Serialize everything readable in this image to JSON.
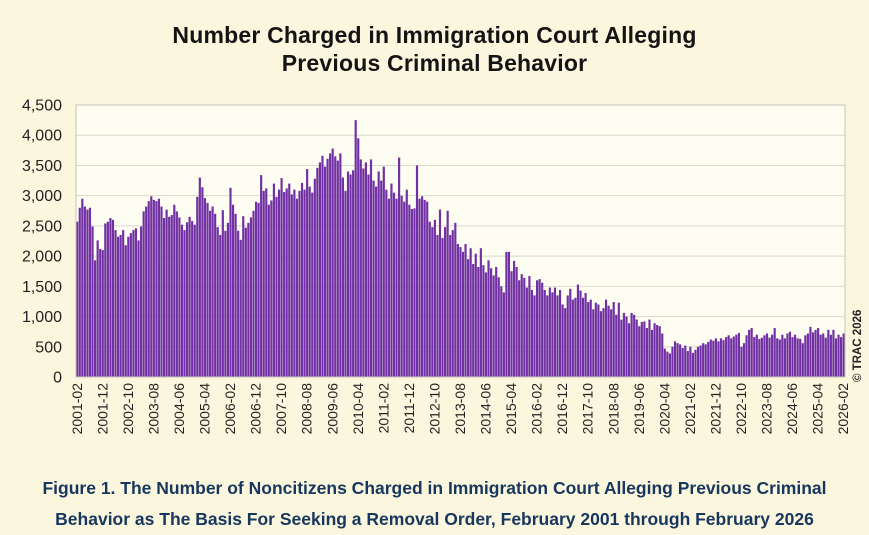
{
  "page": {
    "background": "#FBF6DE",
    "watermark": "© TRAC 2026"
  },
  "caption_lines": [
    "Figure 1. The Number of Noncitizens Charged in Immigration Court Alleging Previous Criminal",
    "Behavior as The Basis For Seeking a Removal Order, February 2001 through February 2026"
  ],
  "chart_data": {
    "type": "bar",
    "title": "Number Charged in Immigration Court Alleging Previous Criminal Behavior",
    "title_lines": [
      "Number Charged in Immigration Court Alleging",
      "Previous Criminal Behavior"
    ],
    "xlabel": "",
    "ylabel": "",
    "x_start": "2001-02",
    "x_end": "2026-02",
    "x_frequency": "monthly",
    "ylim": [
      0,
      4500
    ],
    "ytick_step": 500,
    "ytick_labels": [
      "0",
      "500",
      "1,000",
      "1,500",
      "2,000",
      "2,500",
      "3,000",
      "3,500",
      "4,000",
      "4,500"
    ],
    "grid": true,
    "legend": false,
    "bar_color": "#7130A3",
    "plot_bg": "#FDFDF1",
    "grid_color": "#D9D9CC",
    "frame_color": "#C6C6B8",
    "x_tick_every_months": 10,
    "x_tick_labels": [
      "2001-02",
      "2001-12",
      "2002-10",
      "2003-08",
      "2004-06",
      "2005-04",
      "2006-02",
      "2006-12",
      "2007-10",
      "2008-08",
      "2009-06",
      "2010-04",
      "2011-02",
      "2011-12",
      "2012-10",
      "2013-08",
      "2014-06",
      "2015-04",
      "2016-02",
      "2016-12",
      "2017-10",
      "2018-08",
      "2019-06",
      "2020-04",
      "2021-02",
      "2021-12",
      "2022-10",
      "2023-08",
      "2024-06",
      "2025-04",
      "2026-02"
    ],
    "values": [
      2570,
      2800,
      2950,
      2820,
      2770,
      2800,
      2490,
      1930,
      2260,
      2120,
      2100,
      2540,
      2570,
      2630,
      2600,
      2430,
      2320,
      2350,
      2430,
      2180,
      2320,
      2380,
      2430,
      2460,
      2260,
      2490,
      2740,
      2820,
      2910,
      2990,
      2930,
      2910,
      2950,
      2820,
      2630,
      2770,
      2650,
      2680,
      2850,
      2740,
      2640,
      2520,
      2430,
      2560,
      2650,
      2580,
      2520,
      2980,
      3300,
      3140,
      2960,
      2880,
      2750,
      2820,
      2700,
      2480,
      2350,
      2760,
      2420,
      2550,
      3130,
      2850,
      2700,
      2420,
      2270,
      2660,
      2470,
      2550,
      2640,
      2750,
      2900,
      2880,
      3340,
      3080,
      3120,
      2850,
      2920,
      3200,
      2980,
      3100,
      3290,
      3060,
      3120,
      3200,
      3020,
      3100,
      2950,
      3080,
      3210,
      3100,
      3440,
      3150,
      3050,
      3280,
      3460,
      3550,
      3660,
      3480,
      3610,
      3700,
      3780,
      3650,
      3580,
      3700,
      3300,
      3080,
      3400,
      3350,
      3420,
      4250,
      3950,
      3600,
      3450,
      3550,
      3350,
      3600,
      3250,
      3150,
      3400,
      3250,
      3480,
      3100,
      2950,
      3200,
      3050,
      2950,
      3630,
      3000,
      2900,
      3100,
      2850,
      2780,
      2790,
      3500,
      2950,
      2990,
      2930,
      2900,
      2570,
      2480,
      2600,
      2350,
      2770,
      2300,
      2480,
      2750,
      2350,
      2430,
      2550,
      2200,
      2150,
      2070,
      2200,
      1950,
      2130,
      1870,
      2040,
      1820,
      2130,
      1850,
      1730,
      1930,
      1800,
      1680,
      1820,
      1650,
      1500,
      1400,
      2070,
      2070,
      1750,
      1920,
      1820,
      1600,
      1700,
      1640,
      1480,
      1670,
      1440,
      1350,
      1600,
      1620,
      1560,
      1440,
      1350,
      1480,
      1400,
      1480,
      1350,
      1440,
      1200,
      1140,
      1350,
      1460,
      1280,
      1310,
      1530,
      1430,
      1310,
      1390,
      1240,
      1280,
      1120,
      1230,
      1200,
      1090,
      1140,
      1280,
      1180,
      1120,
      1240,
      1030,
      1230,
      950,
      1060,
      1000,
      890,
      1060,
      1030,
      950,
      840,
      910,
      920,
      810,
      950,
      780,
      890,
      860,
      840,
      720,
      470,
      420,
      390,
      500,
      590,
      560,
      540,
      480,
      520,
      430,
      500,
      400,
      450,
      500,
      520,
      560,
      540,
      580,
      620,
      600,
      640,
      590,
      640,
      610,
      660,
      690,
      640,
      670,
      700,
      730,
      500,
      560,
      690,
      780,
      810,
      660,
      700,
      630,
      650,
      690,
      720,
      650,
      700,
      810,
      640,
      620,
      700,
      640,
      720,
      750,
      660,
      700,
      640,
      630,
      560,
      690,
      720,
      830,
      740,
      780,
      810,
      700,
      720,
      650,
      780,
      700,
      780,
      640,
      700,
      660,
      720
    ]
  }
}
